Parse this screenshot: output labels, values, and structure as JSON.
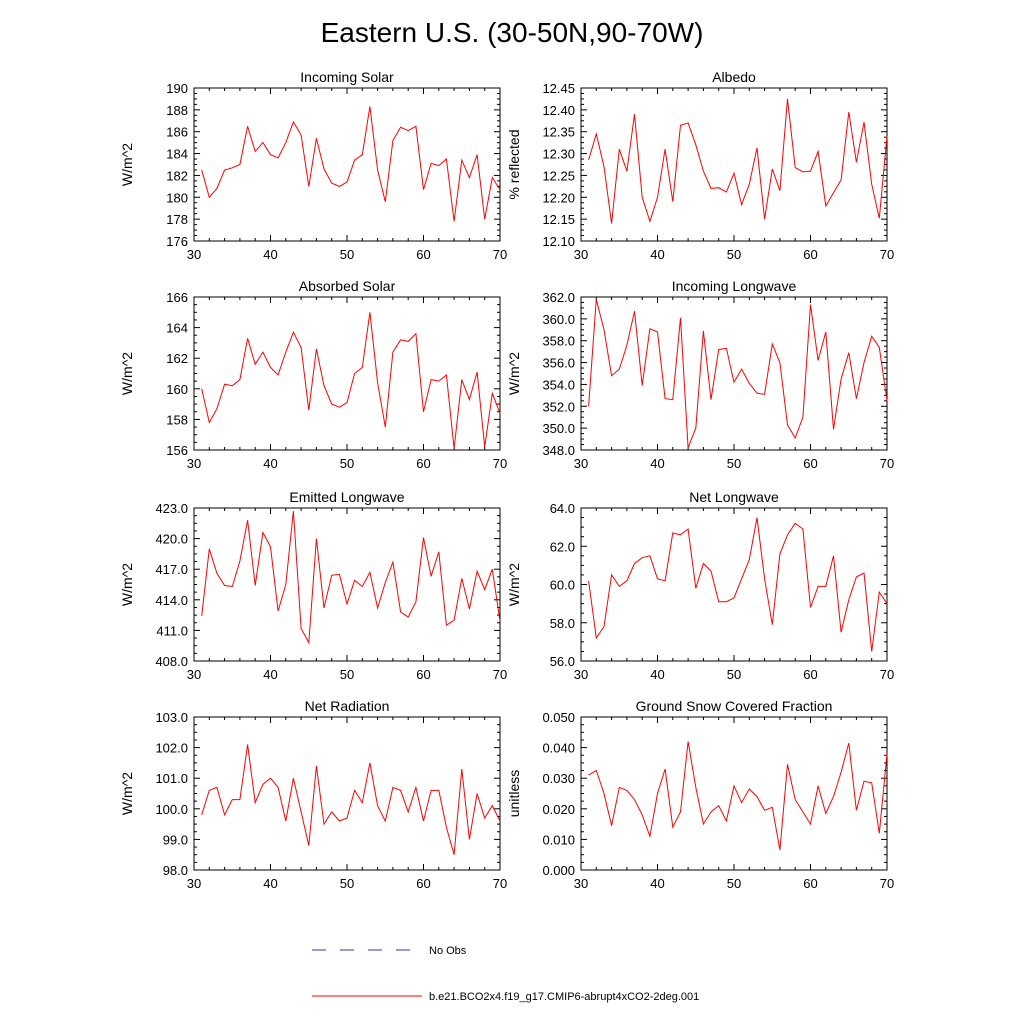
{
  "title": "Eastern U.S. (30-50N,90-70W)",
  "line_color": "#ff0000",
  "obs_color": "#3333aa",
  "legend": {
    "obs_label": "No Obs",
    "model_label": "b.e21.BCO2x4.f19_g17.CMIP6-abrupt4xCO2-2deg.001"
  },
  "chart_data": [
    {
      "type": "line",
      "title": "Incoming Solar",
      "ylabel": "W/m^2",
      "xlim": [
        30,
        70
      ],
      "ylim": [
        176,
        190
      ],
      "xticks": [
        "30",
        "40",
        "50",
        "60",
        "70"
      ],
      "yticks": [
        "176",
        "178",
        "180",
        "182",
        "184",
        "186",
        "188",
        "190"
      ],
      "x_start": 31,
      "values": [
        182.5,
        180.0,
        180.8,
        182.5,
        182.7,
        183.0,
        186.5,
        184.2,
        185.0,
        183.9,
        183.6,
        185.0,
        186.9,
        185.7,
        181.0,
        185.4,
        182.6,
        181.3,
        181.0,
        181.4,
        183.4,
        183.9,
        188.3,
        182.5,
        179.6,
        185.2,
        186.4,
        186.1,
        186.5,
        180.7,
        183.1,
        182.9,
        183.5,
        177.8,
        183.4,
        181.8,
        183.9,
        178.0,
        181.8,
        180.7
      ]
    },
    {
      "type": "line",
      "title": "Albedo",
      "ylabel": "% reflected",
      "xlim": [
        30,
        70
      ],
      "ylim": [
        12.1,
        12.45
      ],
      "xticks": [
        "30",
        "40",
        "50",
        "60",
        "70"
      ],
      "yticks": [
        "12.10",
        "12.15",
        "12.20",
        "12.25",
        "12.30",
        "12.35",
        "12.40",
        "12.45"
      ],
      "x_start": 31,
      "values": [
        12.285,
        12.345,
        12.27,
        12.14,
        12.31,
        12.26,
        12.39,
        12.2,
        12.145,
        12.2,
        12.31,
        12.19,
        12.365,
        12.37,
        12.32,
        12.26,
        12.22,
        12.222,
        12.212,
        12.255,
        12.183,
        12.23,
        12.313,
        12.15,
        12.265,
        12.215,
        12.425,
        12.268,
        12.258,
        12.26,
        12.305,
        12.18,
        12.21,
        12.24,
        12.395,
        12.28,
        12.372,
        12.23,
        12.152,
        12.34
      ]
    },
    {
      "type": "line",
      "title": "Absorbed Solar",
      "ylabel": "W/m^2",
      "xlim": [
        30,
        70
      ],
      "ylim": [
        156,
        166
      ],
      "xticks": [
        "30",
        "40",
        "50",
        "60",
        "70"
      ],
      "yticks": [
        "156",
        "158",
        "160",
        "162",
        "164",
        "166"
      ],
      "x_start": 31,
      "values": [
        160.0,
        157.8,
        158.7,
        160.3,
        160.2,
        160.6,
        163.3,
        161.6,
        162.4,
        161.4,
        160.9,
        162.4,
        163.7,
        162.7,
        158.6,
        162.6,
        160.2,
        159.0,
        158.8,
        159.1,
        161.0,
        161.4,
        165.0,
        160.4,
        157.5,
        162.4,
        163.2,
        163.1,
        163.6,
        158.5,
        160.6,
        160.5,
        160.9,
        156.1,
        160.6,
        159.3,
        161.1,
        156.2,
        159.7,
        158.4
      ]
    },
    {
      "type": "line",
      "title": "Incoming Longwave",
      "ylabel": "W/m^2",
      "xlim": [
        30,
        70
      ],
      "ylim": [
        348,
        362
      ],
      "xticks": [
        "30",
        "40",
        "50",
        "60",
        "70"
      ],
      "yticks": [
        "348.0",
        "350.0",
        "352.0",
        "354.0",
        "356.0",
        "358.0",
        "360.0",
        "362.0"
      ],
      "x_start": 31,
      "values": [
        352.0,
        361.8,
        359.0,
        354.8,
        355.4,
        357.6,
        360.7,
        353.9,
        359.1,
        358.8,
        352.7,
        352.6,
        360.1,
        348.2,
        350.0,
        358.9,
        352.6,
        357.2,
        357.3,
        354.2,
        355.4,
        354.1,
        353.2,
        353.1,
        357.7,
        356.0,
        350.3,
        349.1,
        351.0,
        361.3,
        356.2,
        358.8,
        349.9,
        354.5,
        356.9,
        352.7,
        356.0,
        358.4,
        357.4,
        352.5
      ]
    },
    {
      "type": "line",
      "title": "Emitted Longwave",
      "ylabel": "W/m^2",
      "xlim": [
        30,
        70
      ],
      "ylim": [
        408,
        423
      ],
      "xticks": [
        "30",
        "40",
        "50",
        "60",
        "70"
      ],
      "yticks": [
        "408.0",
        "411.0",
        "414.0",
        "417.0",
        "420.0",
        "423.0"
      ],
      "x_start": 31,
      "values": [
        412.4,
        419.0,
        416.6,
        415.4,
        415.3,
        417.8,
        421.8,
        415.4,
        420.6,
        419.2,
        412.9,
        415.5,
        422.7,
        411.2,
        409.8,
        420.0,
        413.2,
        416.4,
        416.5,
        413.6,
        415.9,
        415.3,
        416.7,
        413.2,
        415.7,
        417.7,
        412.8,
        412.3,
        413.8,
        420.1,
        416.3,
        418.7,
        411.5,
        412.0,
        416.1,
        413.1,
        416.8,
        415.0,
        417.0,
        411.9
      ]
    },
    {
      "type": "line",
      "title": "Net Longwave",
      "ylabel": "W/m^2",
      "xlim": [
        30,
        70
      ],
      "ylim": [
        56,
        64
      ],
      "xticks": [
        "30",
        "40",
        "50",
        "60",
        "70"
      ],
      "yticks": [
        "56.0",
        "58.0",
        "60.0",
        "62.0",
        "64.0"
      ],
      "x_start": 31,
      "values": [
        60.2,
        57.2,
        57.8,
        60.5,
        59.9,
        60.2,
        61.1,
        61.4,
        61.5,
        60.3,
        60.2,
        62.7,
        62.6,
        62.9,
        59.8,
        61.1,
        60.7,
        59.1,
        59.1,
        59.3,
        60.3,
        61.3,
        63.5,
        60.3,
        57.9,
        61.6,
        62.6,
        63.2,
        62.9,
        58.8,
        59.9,
        59.9,
        61.5,
        57.5,
        59.2,
        60.4,
        60.6,
        56.5,
        59.6,
        59.0
      ]
    },
    {
      "type": "line",
      "title": "Net Radiation",
      "ylabel": "W/m^2",
      "xlim": [
        30,
        70
      ],
      "ylim": [
        98,
        103
      ],
      "xticks": [
        "30",
        "40",
        "50",
        "60",
        "70"
      ],
      "yticks": [
        "98.0",
        "99.0",
        "100.0",
        "101.0",
        "102.0",
        "103.0"
      ],
      "x_start": 31,
      "values": [
        99.8,
        100.6,
        100.7,
        99.8,
        100.3,
        100.3,
        102.1,
        100.2,
        100.8,
        101.0,
        100.7,
        99.6,
        101.0,
        99.9,
        98.8,
        101.4,
        99.5,
        99.9,
        99.6,
        99.7,
        100.6,
        100.2,
        101.5,
        100.1,
        99.6,
        100.7,
        100.6,
        99.9,
        100.7,
        99.6,
        100.6,
        100.6,
        99.4,
        98.5,
        101.3,
        99.0,
        100.5,
        99.7,
        100.1,
        99.6
      ]
    },
    {
      "type": "line",
      "title": "Ground Snow Covered Fraction",
      "ylabel": "unitless",
      "xlim": [
        30,
        70
      ],
      "ylim": [
        0,
        0.05
      ],
      "xticks": [
        "30",
        "40",
        "50",
        "60",
        "70"
      ],
      "yticks": [
        "0.000",
        "0.010",
        "0.020",
        "0.030",
        "0.040",
        "0.050"
      ],
      "x_start": 31,
      "values": [
        0.031,
        0.0325,
        0.025,
        0.0145,
        0.027,
        0.026,
        0.023,
        0.018,
        0.011,
        0.025,
        0.033,
        0.014,
        0.019,
        0.042,
        0.027,
        0.015,
        0.019,
        0.021,
        0.016,
        0.0275,
        0.022,
        0.0265,
        0.024,
        0.0195,
        0.0205,
        0.0065,
        0.0345,
        0.023,
        0.019,
        0.015,
        0.0275,
        0.0185,
        0.024,
        0.032,
        0.0415,
        0.0195,
        0.029,
        0.0285,
        0.012,
        0.038
      ]
    }
  ]
}
